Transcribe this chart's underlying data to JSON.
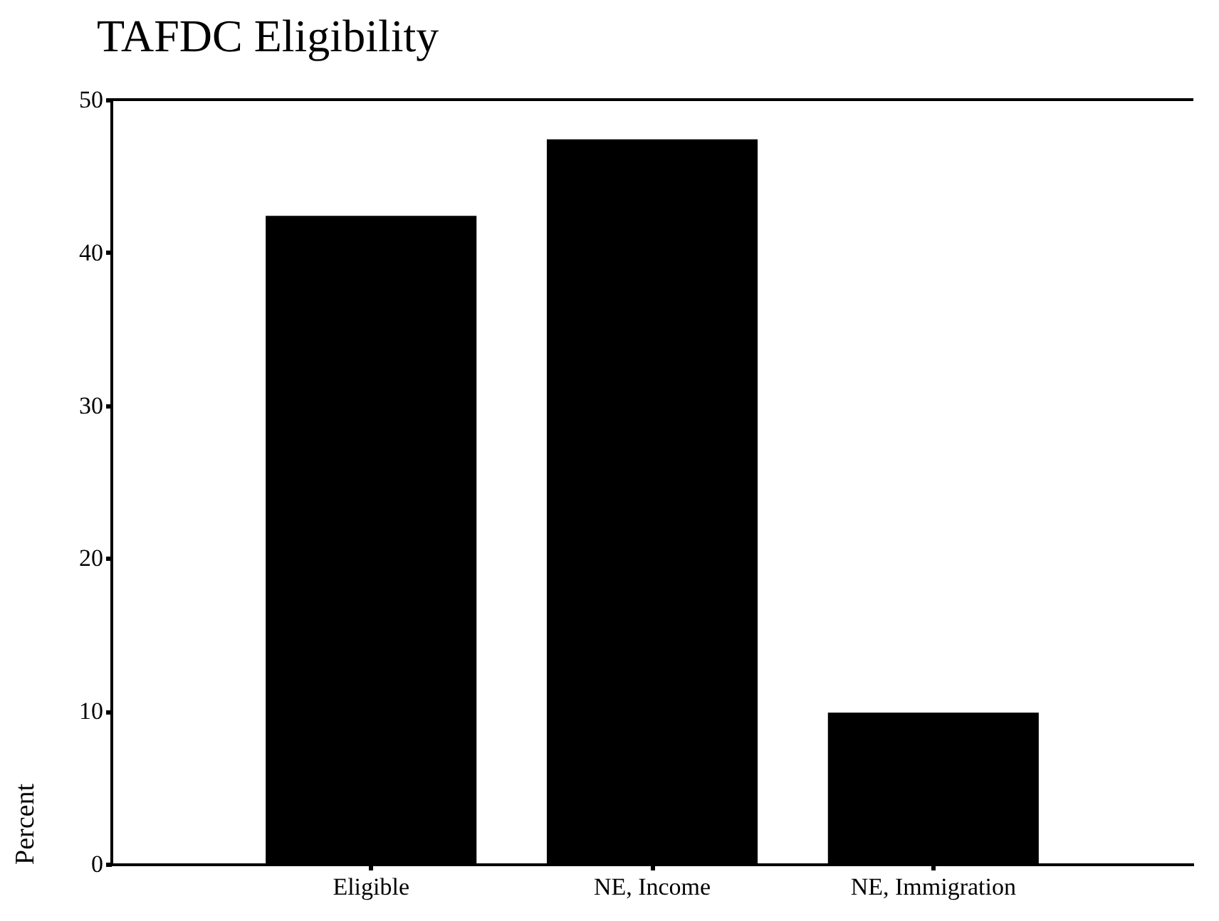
{
  "chart_data": {
    "type": "bar",
    "title": "TAFDC Eligibility",
    "ylabel": "Percent",
    "categories": [
      "Eligible",
      "NE, Income",
      "NE, Immigration"
    ],
    "values": [
      42.4,
      47.4,
      9.9
    ],
    "color": "#000000",
    "ylim": [
      0,
      50
    ],
    "yticks": [
      0,
      10,
      20,
      30,
      40,
      50
    ],
    "grid": false
  }
}
